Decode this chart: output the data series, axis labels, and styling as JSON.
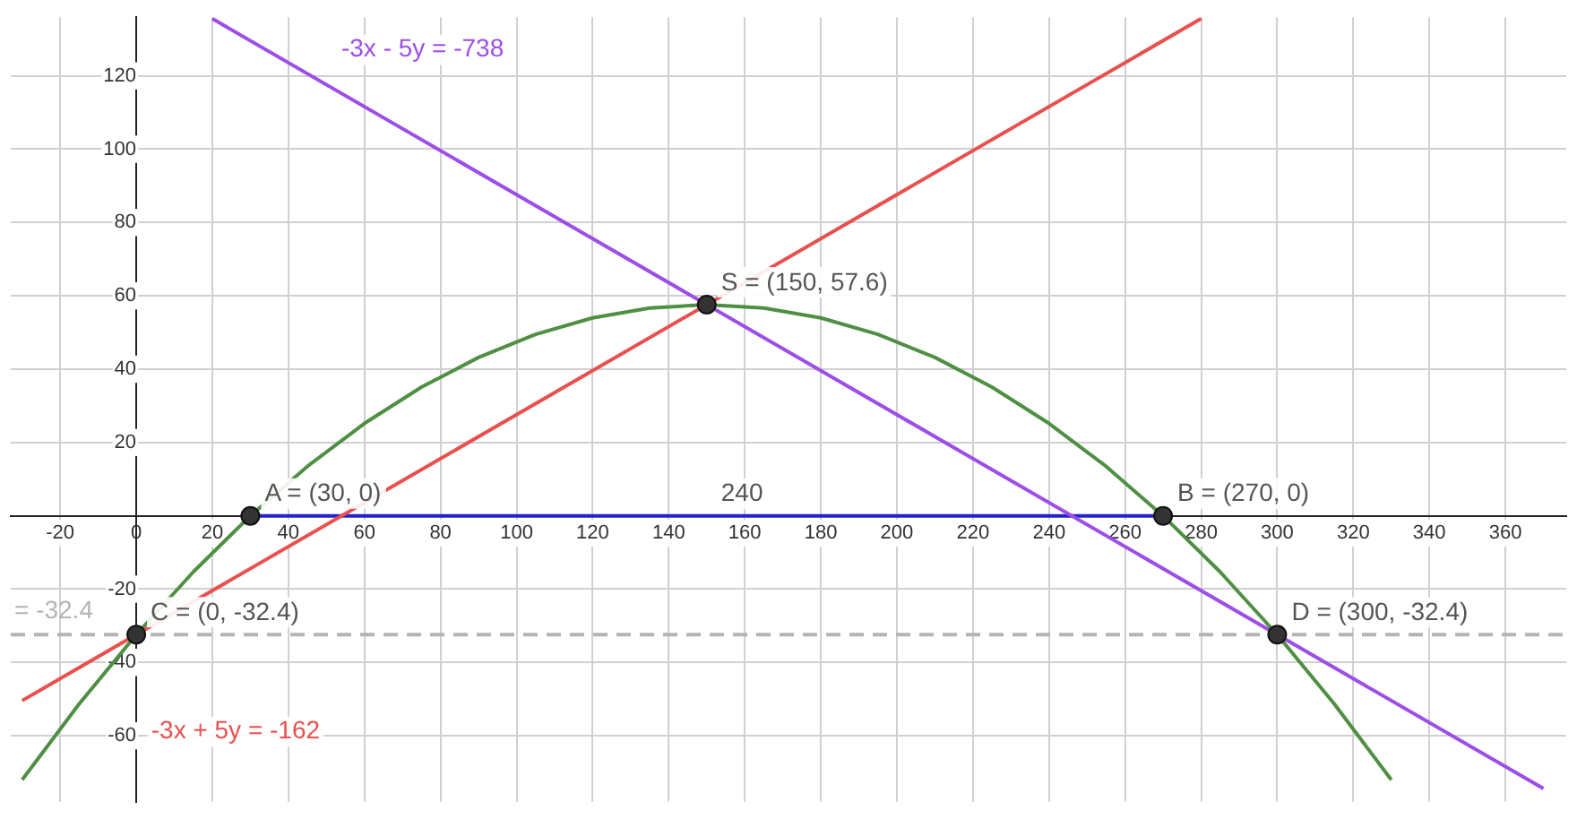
{
  "chart_data": {
    "type": "line",
    "xlim": [
      -33,
      376
    ],
    "ylim": [
      -78,
      136
    ],
    "xticks": [
      -20,
      0,
      20,
      40,
      60,
      80,
      100,
      120,
      140,
      160,
      180,
      200,
      220,
      240,
      260,
      280,
      300,
      320,
      340,
      360
    ],
    "yticks": [
      -60,
      -40,
      -20,
      20,
      40,
      60,
      80,
      100,
      120
    ],
    "grid": true,
    "legend": false,
    "marker": "none",
    "line_style": "solid",
    "series": [
      {
        "type": "line",
        "color": "#4f8f43",
        "x": [
          -30,
          -15,
          0,
          15,
          30,
          45,
          60,
          75,
          90,
          105,
          120,
          135,
          150,
          165,
          180,
          195,
          210,
          225,
          240,
          255,
          270,
          285,
          300,
          315,
          330
        ],
        "values": [
          -72,
          -51.3,
          -32.4,
          -15.3,
          0,
          13.5,
          25.2,
          35.1,
          43.2,
          49.5,
          54,
          56.7,
          57.6,
          56.7,
          54,
          49.5,
          43.2,
          35.1,
          25.2,
          13.5,
          0,
          -15.3,
          -32.4,
          -51.3,
          -72
        ]
      },
      {
        "type": "line",
        "name": "-3x + 5y = -162",
        "color": "#e8504f",
        "x": [
          -30,
          280
        ],
        "values": [
          -50.4,
          135.6
        ]
      },
      {
        "type": "line",
        "name": "-3x - 5y = -738",
        "color": "#9c4ee6",
        "x": [
          20,
          370
        ],
        "values": [
          135.6,
          -74.4
        ]
      },
      {
        "type": "line",
        "color": "#2323c8",
        "x": [
          30,
          270
        ],
        "values": [
          0,
          0
        ]
      },
      {
        "type": "scatter",
        "color": "#333333",
        "marker": "circle",
        "x": [
          30,
          270,
          0,
          300,
          150
        ],
        "values": [
          0,
          0,
          -32.4,
          -32.4,
          57.6
        ]
      }
    ],
    "ref_lines": [
      {
        "axis": "y",
        "value": -32.4,
        "label": "= -32.4",
        "color": "#b4b4b4",
        "line_style": "dashed"
      }
    ],
    "annotations": [
      {
        "text": "A = (30, 0)",
        "x": 30,
        "y": 0
      },
      {
        "text": "B = (270, 0)",
        "x": 270,
        "y": 0
      },
      {
        "text": "C = (0, -32.4)",
        "x": 0,
        "y": -32.4
      },
      {
        "text": "D = (300, -32.4)",
        "x": 300,
        "y": -32.4
      },
      {
        "text": "S = (150, 57.6)",
        "x": 150,
        "y": 57.6
      },
      {
        "text": "240",
        "x": 150,
        "y": 0
      }
    ]
  }
}
